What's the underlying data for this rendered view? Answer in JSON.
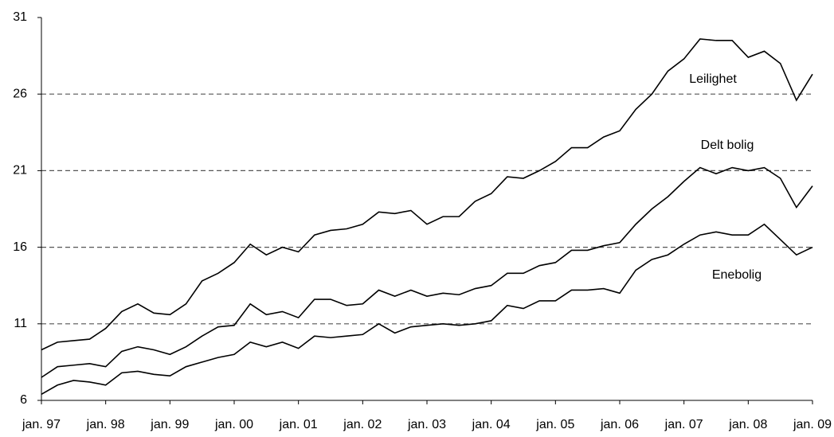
{
  "chart_data": {
    "type": "line",
    "categories": [
      "jan. 97",
      null,
      null,
      null,
      "jan. 98",
      null,
      null,
      null,
      "jan. 99",
      null,
      null,
      null,
      "jan. 00",
      null,
      null,
      null,
      "jan. 01",
      null,
      null,
      null,
      "jan. 02",
      null,
      null,
      null,
      "jan. 03",
      null,
      null,
      null,
      "jan. 04",
      null,
      null,
      null,
      "jan. 05",
      null,
      null,
      null,
      "jan. 06",
      null,
      null,
      null,
      "jan. 07",
      null,
      null,
      null,
      "jan. 08",
      null,
      null,
      null,
      "jan. 09"
    ],
    "series": [
      {
        "name": "Leilighet",
        "color": "#000000",
        "values": [
          9.3,
          9.8,
          9.9,
          10.0,
          10.7,
          11.8,
          12.3,
          11.7,
          11.6,
          12.3,
          13.8,
          14.3,
          15.0,
          16.2,
          15.5,
          16.0,
          15.7,
          16.8,
          17.1,
          17.2,
          17.5,
          18.3,
          18.2,
          18.4,
          17.5,
          18.0,
          18.0,
          19.0,
          19.5,
          20.6,
          20.5,
          21.0,
          21.6,
          22.5,
          22.5,
          23.2,
          23.6,
          25.0,
          26.0,
          27.5,
          28.3,
          29.6,
          29.5,
          29.5,
          28.4,
          28.8,
          28.0,
          25.6,
          27.3
        ]
      },
      {
        "name": "Delt bolig",
        "color": "#000000",
        "values": [
          7.5,
          8.2,
          8.3,
          8.4,
          8.2,
          9.2,
          9.5,
          9.3,
          9.0,
          9.5,
          10.2,
          10.8,
          10.9,
          12.3,
          11.6,
          11.8,
          11.4,
          12.6,
          12.6,
          12.2,
          12.3,
          13.2,
          12.8,
          13.2,
          12.8,
          13.0,
          12.9,
          13.3,
          13.5,
          14.3,
          14.3,
          14.8,
          15.0,
          15.8,
          15.8,
          16.1,
          16.3,
          17.5,
          18.5,
          19.3,
          20.3,
          21.2,
          20.8,
          21.2,
          21.0,
          21.2,
          20.5,
          18.6,
          20.0
        ]
      },
      {
        "name": "Enebolig",
        "color": "#000000",
        "values": [
          6.4,
          7.0,
          7.3,
          7.2,
          7.0,
          7.8,
          7.9,
          7.7,
          7.6,
          8.2,
          8.5,
          8.8,
          9.0,
          9.8,
          9.5,
          9.8,
          9.4,
          10.2,
          10.1,
          10.2,
          10.3,
          11.0,
          10.4,
          10.8,
          10.9,
          11.0,
          10.9,
          11.0,
          11.2,
          12.2,
          12.0,
          12.5,
          12.5,
          13.2,
          13.2,
          13.3,
          13.0,
          14.5,
          15.2,
          15.5,
          16.2,
          16.8,
          17.0,
          16.8,
          16.8,
          17.5,
          16.5,
          15.5,
          16.0
        ]
      }
    ],
    "ylim": [
      6,
      31
    ],
    "yticks": [
      6,
      11,
      16,
      21,
      26,
      31
    ],
    "grid": true
  }
}
